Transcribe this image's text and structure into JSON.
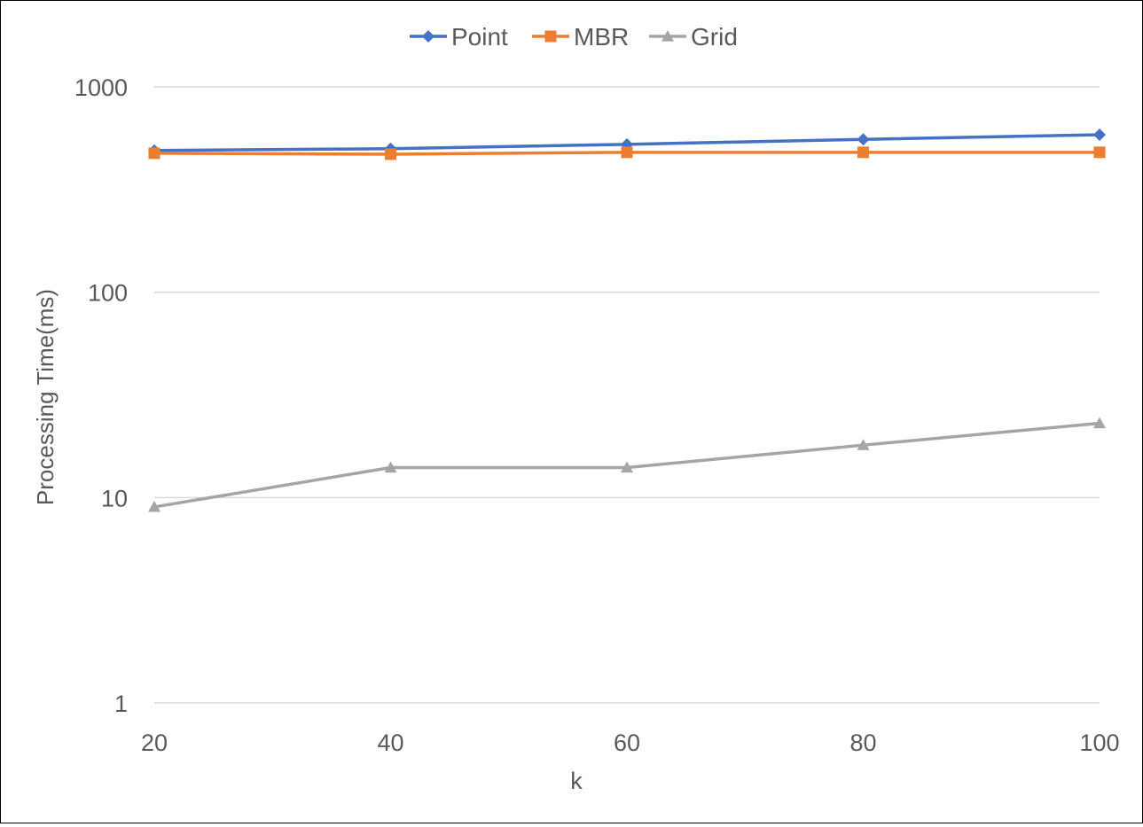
{
  "chart_data": {
    "type": "line",
    "title": "",
    "xlabel": "k",
    "ylabel": "Processing Time(ms)",
    "y_scale": "log",
    "ylim": [
      1,
      1000
    ],
    "y_ticks": [
      {
        "value": 1,
        "label": "1"
      },
      {
        "value": 10,
        "label": "10"
      },
      {
        "value": 100,
        "label": "100"
      },
      {
        "value": 1000,
        "label": "1000"
      }
    ],
    "categories": [
      "20",
      "40",
      "60",
      "80",
      "100"
    ],
    "grid": true,
    "legend_position": "top",
    "series": [
      {
        "name": "Point",
        "color": "#4472C4",
        "marker": "diamond",
        "values": [
          490,
          500,
          525,
          555,
          585
        ]
      },
      {
        "name": "MBR",
        "color": "#ED7D31",
        "marker": "square",
        "values": [
          475,
          470,
          480,
          480,
          480
        ]
      },
      {
        "name": "Grid",
        "color": "#A5A5A5",
        "marker": "triangle",
        "values": [
          9,
          14,
          14,
          18,
          23
        ]
      }
    ]
  }
}
